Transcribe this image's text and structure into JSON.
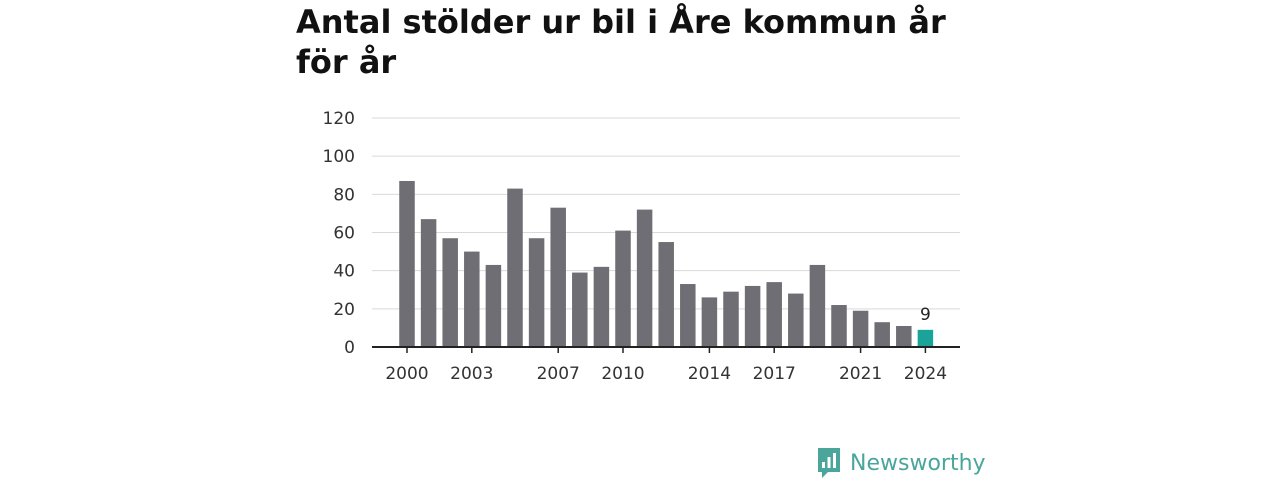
{
  "title": "Antal stölder ur bil i Åre kommun år för år",
  "brand": {
    "name": "Newsworthy",
    "icon": "newsworthy-logo-icon",
    "color": "#4aa59b"
  },
  "colors": {
    "bar": "#6f6e74",
    "highlight": "#1aa398",
    "grid": "#d9d9d9",
    "axis": "#222222"
  },
  "chart_data": {
    "type": "bar",
    "title": "Antal stölder ur bil i Åre kommun år för år",
    "xlabel": "",
    "ylabel": "",
    "categories": [
      "2000",
      "2001",
      "2002",
      "2003",
      "2004",
      "2005",
      "2006",
      "2007",
      "2008",
      "2009",
      "2010",
      "2011",
      "2012",
      "2013",
      "2014",
      "2015",
      "2016",
      "2017",
      "2018",
      "2019",
      "2020",
      "2021",
      "2022",
      "2023",
      "2024"
    ],
    "values": [
      87,
      67,
      57,
      50,
      43,
      83,
      57,
      73,
      39,
      42,
      61,
      72,
      55,
      33,
      26,
      29,
      32,
      34,
      28,
      43,
      22,
      19,
      13,
      11,
      9
    ],
    "x_tick_labels": [
      "2000",
      "2003",
      "2007",
      "2010",
      "2014",
      "2017",
      "2021",
      "2024"
    ],
    "y_ticks": [
      0,
      20,
      40,
      60,
      80,
      100,
      120
    ],
    "ylim": [
      0,
      120
    ],
    "grid": true,
    "highlight_category": "2024",
    "data_labels": [
      {
        "category": "2024",
        "text": "9"
      }
    ]
  }
}
